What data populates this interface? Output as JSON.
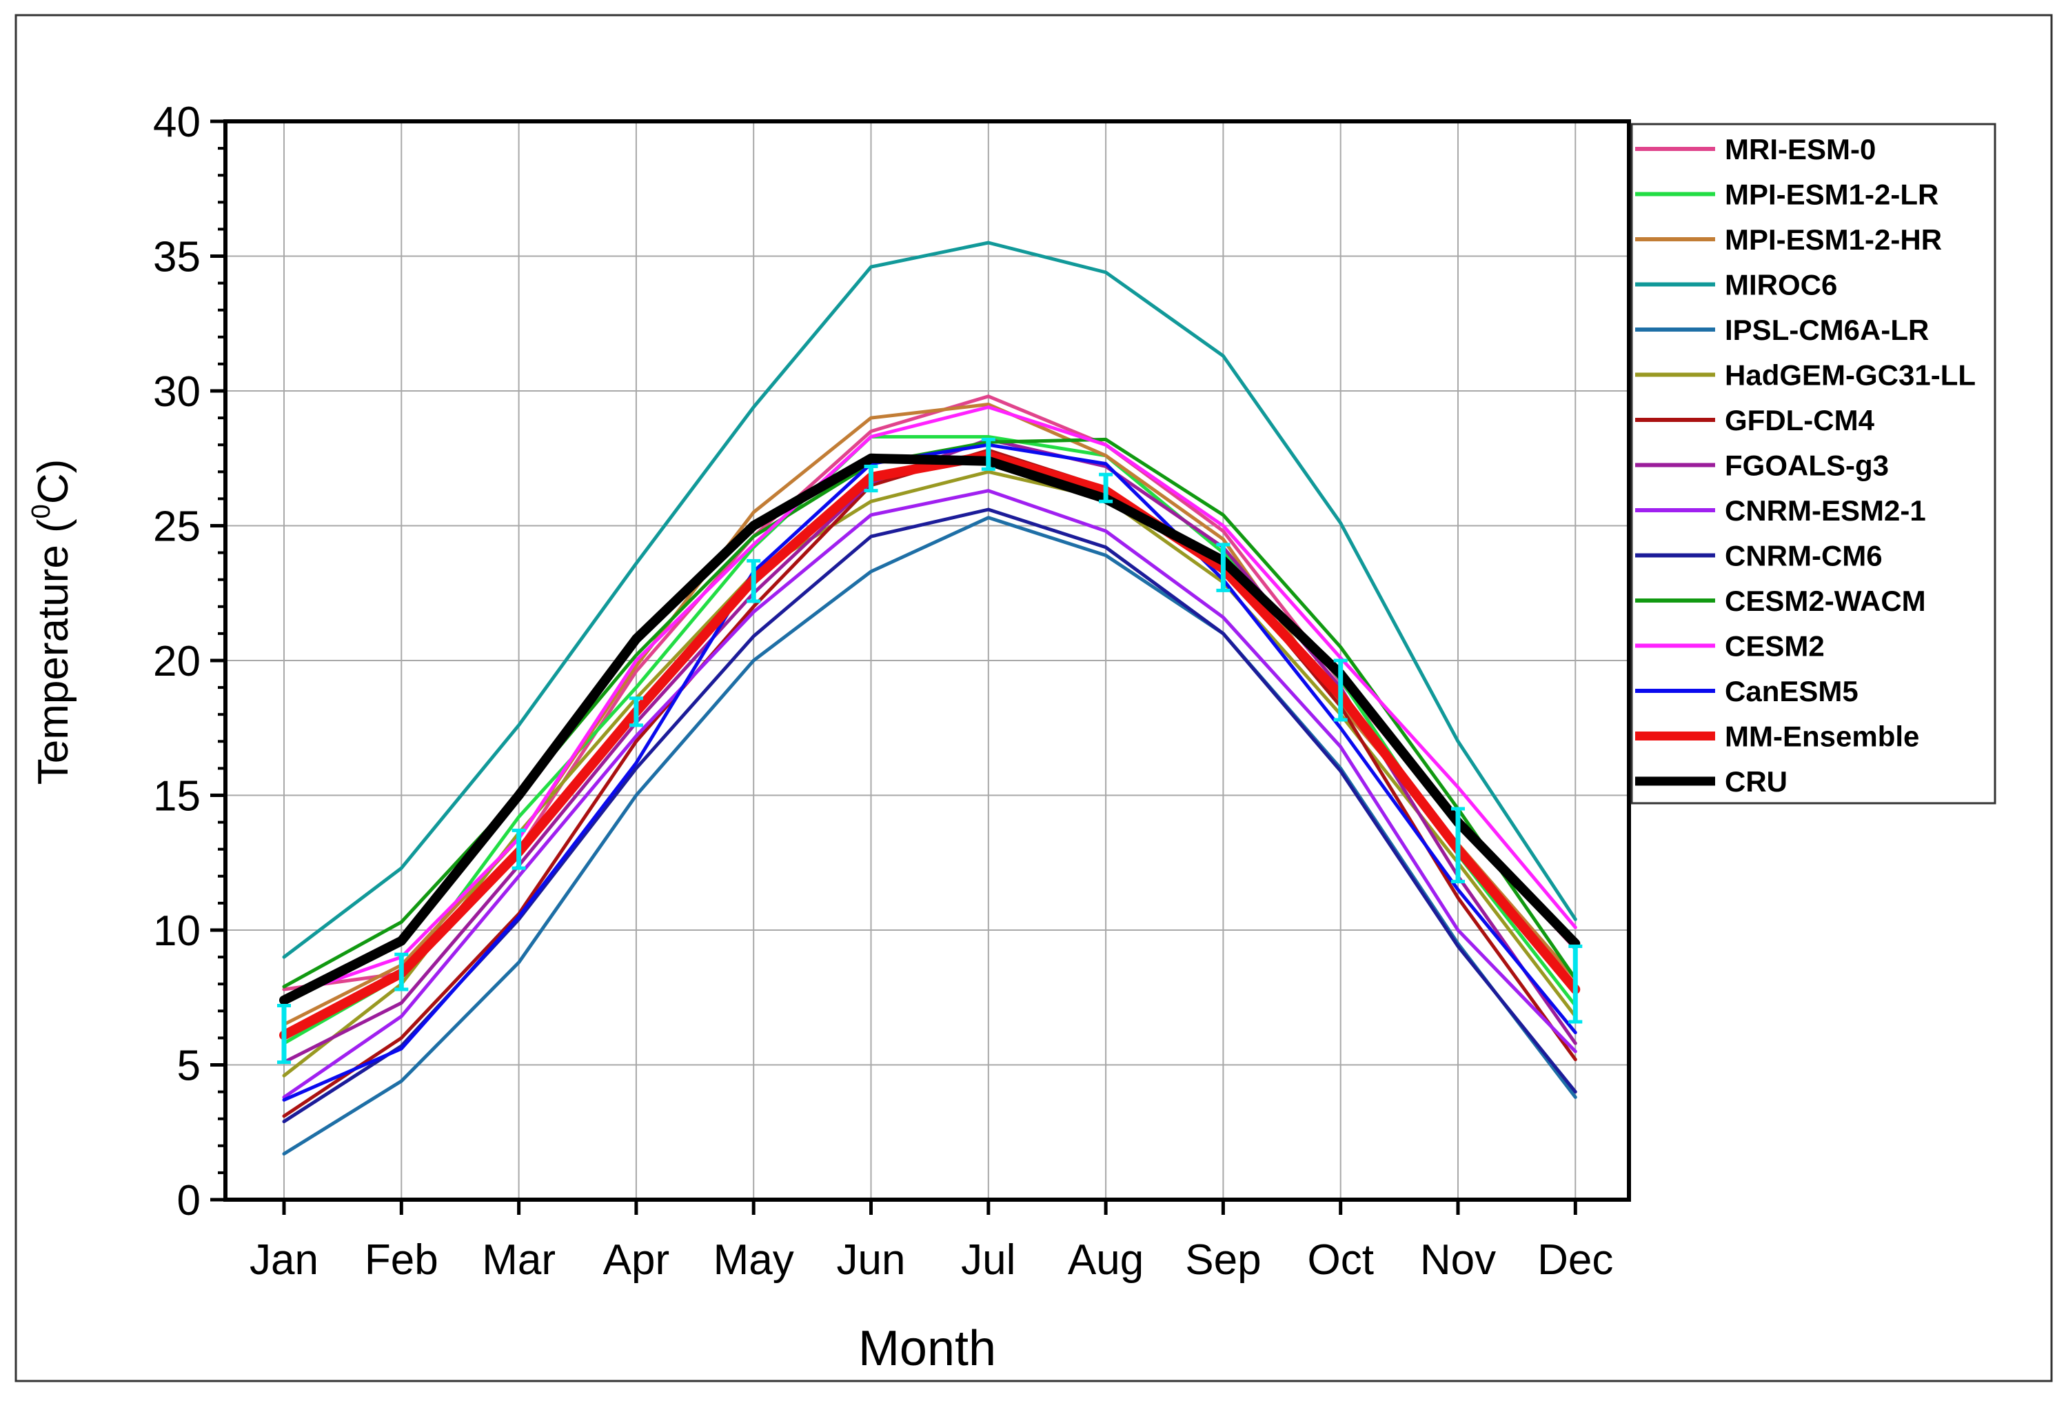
{
  "chart_data": {
    "type": "line",
    "title": "",
    "xlabel": "Month",
    "ylabel_text": "Temperature (",
    "ylabel_sup": "0",
    "ylabel_unit": "C)",
    "categories": [
      "Jan",
      "Feb",
      "Mar",
      "Apr",
      "May",
      "Jun",
      "Jul",
      "Aug",
      "Sep",
      "Oct",
      "Nov",
      "Dec"
    ],
    "ylim": [
      0,
      40
    ],
    "yticks": [
      0,
      5,
      10,
      15,
      20,
      25,
      30,
      35,
      40
    ],
    "ytick_labels": [
      "0",
      "5",
      "10",
      "15",
      "20",
      "25",
      "30",
      "35",
      "40"
    ],
    "grid": true,
    "legend_position": "right-top",
    "series": [
      {
        "name": "MRI-ESM-0",
        "color": "#e0448c",
        "width": "thin",
        "values": [
          7.8,
          8.4,
          13.0,
          19.6,
          24.6,
          28.5,
          29.8,
          28.0,
          24.8,
          19.2,
          14.0,
          9.3
        ]
      },
      {
        "name": "MPI-ESM1-2-LR",
        "color": "#22dd44",
        "width": "thin",
        "values": [
          5.8,
          8.3,
          14.2,
          19.0,
          24.2,
          28.3,
          28.3,
          27.6,
          24.0,
          19.3,
          12.8,
          7.2
        ]
      },
      {
        "name": "MPI-ESM1-2-HR",
        "color": "#c27d35",
        "width": "thin",
        "values": [
          6.5,
          8.7,
          13.4,
          19.8,
          25.5,
          29.0,
          29.5,
          27.6,
          24.5,
          18.3,
          13.2,
          8.2
        ]
      },
      {
        "name": "MIROC6",
        "color": "#119999",
        "width": "thin",
        "values": [
          9.0,
          12.3,
          17.6,
          23.6,
          29.4,
          34.6,
          35.5,
          34.4,
          31.3,
          25.1,
          17.0,
          10.4
        ]
      },
      {
        "name": "IPSL-CM6A-LR",
        "color": "#1e6fa6",
        "width": "thin",
        "values": [
          1.7,
          4.4,
          8.8,
          15.0,
          20.0,
          23.3,
          25.3,
          23.9,
          21.0,
          16.0,
          9.5,
          3.8
        ]
      },
      {
        "name": "HadGEM-GC31-LL",
        "color": "#999922",
        "width": "thin",
        "values": [
          4.6,
          8.0,
          13.6,
          18.6,
          23.2,
          25.9,
          27.0,
          26.0,
          22.9,
          18.0,
          12.5,
          6.8
        ]
      },
      {
        "name": "GFDL-CM4",
        "color": "#aa1111",
        "width": "thin",
        "values": [
          3.1,
          6.0,
          10.6,
          17.0,
          22.0,
          26.5,
          27.8,
          26.4,
          23.5,
          18.3,
          11.2,
          5.2
        ]
      },
      {
        "name": "FGOALS-g3",
        "color": "#9b1d9b",
        "width": "thin",
        "values": [
          5.1,
          7.3,
          12.4,
          17.7,
          22.5,
          26.6,
          28.2,
          27.2,
          24.2,
          19.0,
          12.0,
          5.8
        ]
      },
      {
        "name": "CNRM-ESM2-1",
        "color": "#a020f0",
        "width": "thin",
        "values": [
          3.8,
          6.8,
          12.0,
          17.2,
          21.8,
          25.4,
          26.3,
          24.8,
          21.6,
          16.8,
          10.0,
          5.5
        ]
      },
      {
        "name": "CNRM-CM6",
        "color": "#1c1c99",
        "width": "thin",
        "values": [
          2.9,
          5.7,
          10.4,
          16.0,
          20.9,
          24.6,
          25.6,
          24.2,
          21.0,
          15.9,
          9.4,
          4.0
        ]
      },
      {
        "name": "CESM2-WACM",
        "color": "#119911",
        "width": "thin",
        "values": [
          7.9,
          10.3,
          15.0,
          20.2,
          24.6,
          27.3,
          28.1,
          28.2,
          25.4,
          20.5,
          14.5,
          8.2
        ]
      },
      {
        "name": "CESM2",
        "color": "#ff22ff",
        "width": "thin",
        "values": [
          7.5,
          9.0,
          13.4,
          20.0,
          24.3,
          28.3,
          29.4,
          28.0,
          25.0,
          20.1,
          15.3,
          10.1
        ]
      },
      {
        "name": "CanESM5",
        "color": "#0a0aee",
        "width": "thin",
        "values": [
          3.7,
          5.6,
          10.5,
          16.2,
          23.3,
          27.3,
          28.0,
          27.3,
          23.0,
          17.5,
          11.5,
          6.2
        ]
      },
      {
        "name": "MM-Ensemble",
        "color": "#ee1111",
        "width": "thick",
        "values": [
          6.1,
          8.4,
          12.9,
          18.1,
          23.0,
          26.8,
          27.6,
          26.3,
          23.4,
          18.7,
          13.0,
          7.8
        ]
      },
      {
        "name": "CRU",
        "color": "#000000",
        "width": "thick",
        "values": [
          7.4,
          9.6,
          15.0,
          20.8,
          25.0,
          27.5,
          27.4,
          26.0,
          23.7,
          19.5,
          14.0,
          9.5
        ]
      }
    ],
    "error_bars": {
      "series": "MM-Ensemble",
      "color": "#00e5ee",
      "low": [
        5.1,
        7.8,
        12.3,
        17.6,
        22.2,
        26.3,
        27.1,
        25.9,
        22.6,
        17.8,
        11.8,
        6.6
      ],
      "high": [
        7.2,
        9.1,
        13.7,
        18.6,
        23.7,
        27.2,
        28.2,
        26.9,
        24.3,
        20.0,
        14.5,
        9.4
      ]
    }
  }
}
